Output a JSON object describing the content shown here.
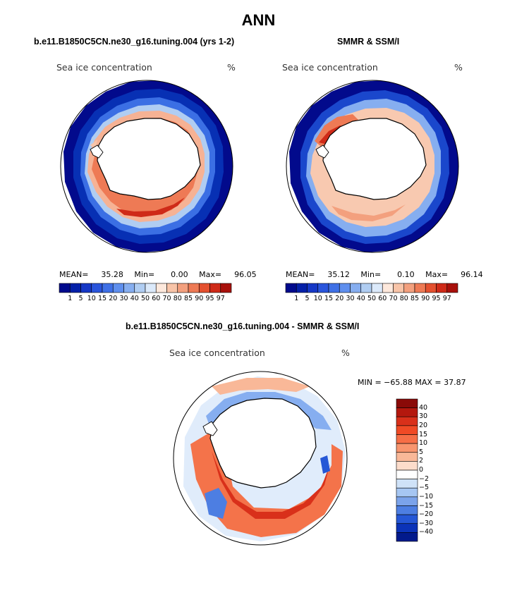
{
  "title": "ANN",
  "panels": [
    {
      "title": "b.e11.B1850C5CN.ne30_g16.tuning.004 (yrs 1-2)",
      "variable": "Sea ice concentration",
      "units": "%",
      "stats": {
        "mean": "35.28",
        "min": "0.00",
        "max": "96.05"
      }
    },
    {
      "title": "SMMR & SSM/I",
      "variable": "Sea ice concentration",
      "units": "%",
      "stats": {
        "mean": "35.12",
        "min": "0.10",
        "max": "96.14"
      }
    }
  ],
  "stat_labels": {
    "mean": "MEAN=",
    "min": "Min=",
    "max": "Max="
  },
  "levels": [
    "1",
    "5",
    "10",
    "15",
    "20",
    "30",
    "40",
    "50",
    "60",
    "70",
    "80",
    "85",
    "90",
    "95",
    "97"
  ],
  "level_colors": [
    "#000a8c",
    "#0420a8",
    "#1638c6",
    "#2a55dc",
    "#3f70e6",
    "#5f8fee",
    "#86aef0",
    "#b0cdf2",
    "#dbe9fa",
    "#fde8dc",
    "#f8c4a8",
    "#f3a07e",
    "#ee7a55",
    "#e4502f",
    "#cf2a18",
    "#a8100b"
  ],
  "diff_panel": {
    "title": "b.e11.B1850C5CN.ne30_g16.tuning.004 - SMMR & SSM/I",
    "variable": "Sea ice concentration",
    "units": "%",
    "minmax_text": "MIN = −65.88 MAX =  37.87",
    "levels": [
      "40",
      "30",
      "20",
      "15",
      "10",
      "5",
      "2",
      "0",
      "−2",
      "−5",
      "−10",
      "−15",
      "−20",
      "−30",
      "−40"
    ],
    "colors": [
      "#8a0a08",
      "#b4180e",
      "#d9301a",
      "#f04a25",
      "#f66e46",
      "#f8956e",
      "#f9b898",
      "#fcdccb",
      "#ffffff",
      "#cfe2f8",
      "#a6c6f2",
      "#7ba3ea",
      "#4d7ee2",
      "#2557d6",
      "#0b33b8",
      "#021a8c"
    ]
  }
}
